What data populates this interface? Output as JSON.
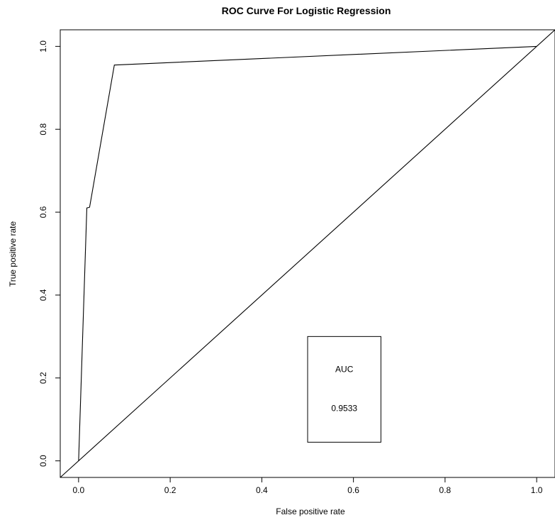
{
  "chart_data": {
    "type": "line",
    "title": "ROC Curve For Logistic Regression",
    "xlabel": "False positive rate",
    "ylabel": "True positive rate",
    "xlim": [
      -0.04,
      1.04
    ],
    "ylim": [
      -0.04,
      1.04
    ],
    "grid": false,
    "x_ticks": [
      "0.0",
      "0.2",
      "0.4",
      "0.6",
      "0.8",
      "1.0"
    ],
    "y_ticks": [
      "0.0",
      "0.2",
      "0.4",
      "0.6",
      "0.8",
      "1.0"
    ],
    "series": [
      {
        "x": [
          0.0,
          0.018,
          0.018,
          0.024,
          0.078,
          1.0
        ],
        "y": [
          0.0,
          0.61,
          0.61,
          0.612,
          0.955,
          1.0
        ]
      },
      {
        "x": [
          -0.04,
          1.04
        ],
        "y": [
          -0.04,
          1.04
        ]
      }
    ],
    "annotation": {
      "label": "AUC",
      "value": "0.9533",
      "x_range": [
        0.5,
        0.66
      ],
      "y_range": [
        0.045,
        0.3
      ]
    }
  }
}
